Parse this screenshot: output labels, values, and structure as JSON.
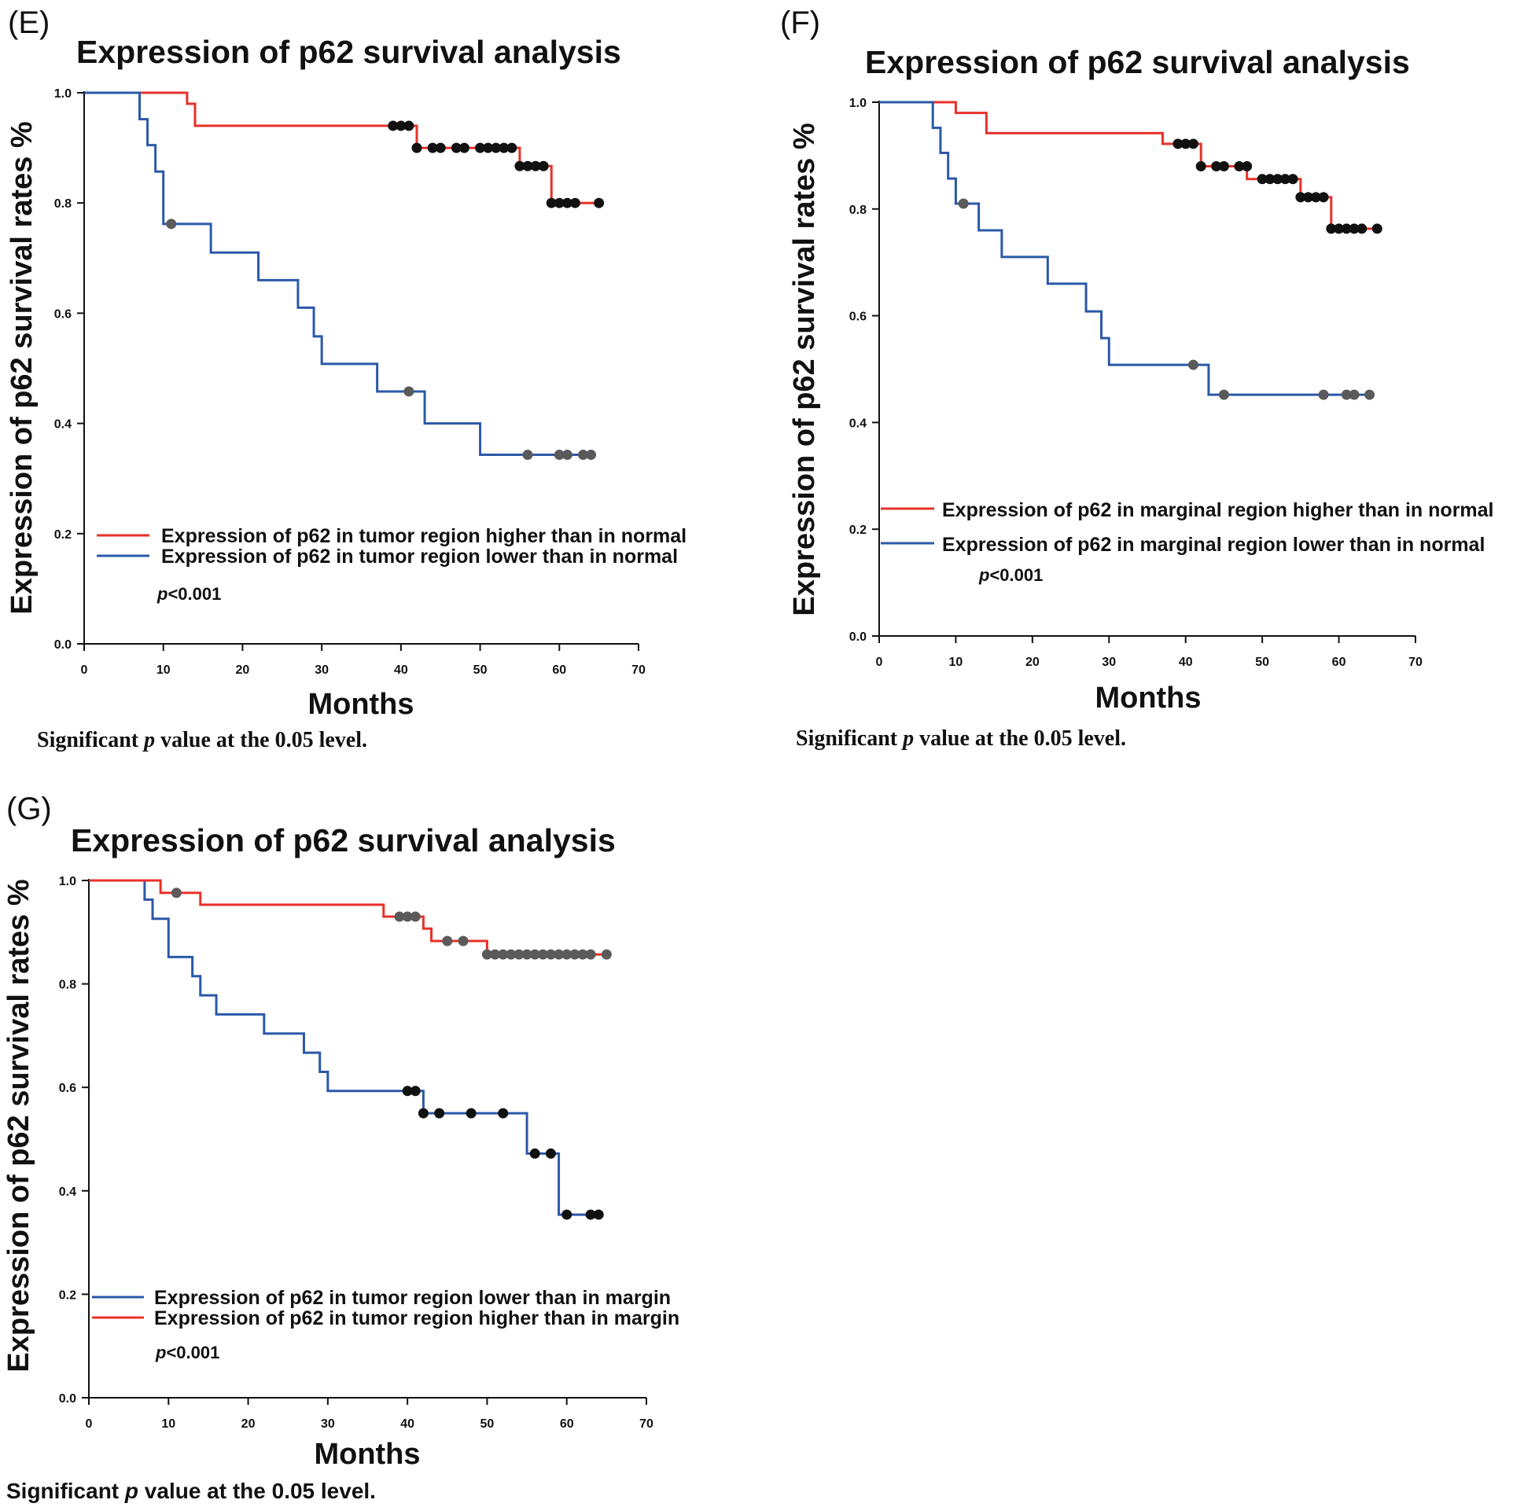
{
  "chart_data": [
    {
      "type": "line",
      "panel_label": "(E)",
      "title": "Expression of p62 survival analysis",
      "xlabel": "Months",
      "ylabel": "Expression of p62 survival rates %",
      "xlim": [
        0,
        70
      ],
      "ylim": [
        0,
        1
      ],
      "xticks": [
        "0",
        "10",
        "20",
        "30",
        "40",
        "50",
        "60",
        "70"
      ],
      "yticks": [
        "0.0",
        "0.2",
        "0.4",
        "0.6",
        "0.8",
        "1.0"
      ],
      "legend_placement": "lower-left",
      "p_prefix": "p",
      "p_value": "<0.001",
      "note": {
        "prefix": "Significant ",
        "italic": "p",
        "suffix": " value at the 0.05 level."
      },
      "series": [
        {
          "name": "Expression of p62 in tumor region higher than in normal",
          "color": "#e8312a",
          "censor_color": "#111111",
          "x": [
            0,
            13,
            14,
            42,
            55,
            59,
            65
          ],
          "y": [
            1.0,
            0.98,
            0.94,
            0.9,
            0.867,
            0.8,
            0.8
          ],
          "censored": [
            [
              39,
              0.94
            ],
            [
              40,
              0.94
            ],
            [
              41,
              0.94
            ],
            [
              42,
              0.9
            ],
            [
              44,
              0.9
            ],
            [
              45,
              0.9
            ],
            [
              47,
              0.9
            ],
            [
              48,
              0.9
            ],
            [
              50,
              0.9
            ],
            [
              51,
              0.9
            ],
            [
              52,
              0.9
            ],
            [
              53,
              0.9
            ],
            [
              54,
              0.9
            ],
            [
              55,
              0.867
            ],
            [
              56,
              0.867
            ],
            [
              57,
              0.867
            ],
            [
              58,
              0.867
            ],
            [
              59,
              0.8
            ],
            [
              60,
              0.8
            ],
            [
              61,
              0.8
            ],
            [
              62,
              0.8
            ],
            [
              65,
              0.8
            ]
          ]
        },
        {
          "name": "Expression of p62 in tumor region lower than in normal",
          "color": "#2b59a8",
          "censor_color": "#5a5a5a",
          "x": [
            0,
            7,
            8,
            9,
            10,
            16,
            22,
            27,
            29,
            30,
            37,
            43,
            50,
            64
          ],
          "y": [
            1.0,
            0.952,
            0.905,
            0.857,
            0.762,
            0.71,
            0.66,
            0.61,
            0.558,
            0.508,
            0.458,
            0.4,
            0.343,
            0.343
          ],
          "censored": [
            [
              11,
              0.762
            ],
            [
              41,
              0.458
            ],
            [
              56,
              0.343
            ],
            [
              60,
              0.343
            ],
            [
              61,
              0.343
            ],
            [
              63,
              0.343
            ],
            [
              64,
              0.343
            ]
          ]
        }
      ]
    },
    {
      "type": "line",
      "panel_label": "(F)",
      "title": "Expression of p62 survival analysis",
      "xlabel": "Months",
      "ylabel": "Expression of p62 survival rates %",
      "xlim": [
        0,
        70
      ],
      "ylim": [
        0,
        1
      ],
      "xticks": [
        "0",
        "10",
        "20",
        "30",
        "40",
        "50",
        "60",
        "70"
      ],
      "yticks": [
        "0.0",
        "0.2",
        "0.4",
        "0.6",
        "0.8",
        "1.0"
      ],
      "legend_placement": "lower-left",
      "p_prefix": "p",
      "p_value": "<0.001",
      "note": {
        "prefix": "Significant ",
        "italic": "p",
        "suffix": " value at the 0.05 level."
      },
      "series": [
        {
          "name": "Expression of p62 in marginal region higher than in normal",
          "color": "#e8312a",
          "censor_color": "#111111",
          "x": [
            0,
            10,
            14,
            37,
            42,
            48,
            55,
            59,
            65
          ],
          "y": [
            1.0,
            0.98,
            0.942,
            0.922,
            0.88,
            0.856,
            0.822,
            0.763,
            0.763
          ],
          "censored": [
            [
              39,
              0.922
            ],
            [
              40,
              0.922
            ],
            [
              41,
              0.922
            ],
            [
              42,
              0.88
            ],
            [
              44,
              0.88
            ],
            [
              45,
              0.88
            ],
            [
              47,
              0.88
            ],
            [
              48,
              0.88
            ],
            [
              50,
              0.856
            ],
            [
              51,
              0.856
            ],
            [
              52,
              0.856
            ],
            [
              53,
              0.856
            ],
            [
              54,
              0.856
            ],
            [
              55,
              0.822
            ],
            [
              56,
              0.822
            ],
            [
              57,
              0.822
            ],
            [
              58,
              0.822
            ],
            [
              59,
              0.763
            ],
            [
              60,
              0.763
            ],
            [
              61,
              0.763
            ],
            [
              62,
              0.763
            ],
            [
              63,
              0.763
            ],
            [
              65,
              0.763
            ]
          ]
        },
        {
          "name": "Expression of p62 in marginal region lower than in normal",
          "color": "#2b59a8",
          "censor_color": "#5a5a5a",
          "x": [
            0,
            7,
            8,
            9,
            10,
            13,
            16,
            22,
            27,
            29,
            30,
            43,
            64
          ],
          "y": [
            1.0,
            0.952,
            0.905,
            0.857,
            0.81,
            0.76,
            0.71,
            0.66,
            0.608,
            0.558,
            0.508,
            0.452,
            0.452
          ],
          "censored": [
            [
              11,
              0.81
            ],
            [
              41,
              0.508
            ],
            [
              45,
              0.452
            ],
            [
              58,
              0.452
            ],
            [
              61,
              0.452
            ],
            [
              62,
              0.452
            ],
            [
              64,
              0.452
            ]
          ]
        }
      ]
    },
    {
      "type": "line",
      "panel_label": "(G)",
      "title": "Expression of p62 survival analysis",
      "xlabel": "Months",
      "ylabel": "Expression of p62 survival rates %",
      "xlim": [
        0,
        70
      ],
      "ylim": [
        0,
        1
      ],
      "xticks": [
        "0",
        "10",
        "20",
        "30",
        "40",
        "50",
        "60",
        "70"
      ],
      "yticks": [
        "0.0",
        "0.2",
        "0.4",
        "0.6",
        "0.8",
        "1.0"
      ],
      "legend_placement": "lower-left",
      "p_prefix": "p",
      "p_value": "<0.001",
      "note": {
        "prefix": "Significant ",
        "italic": "p",
        "suffix": " value at the 0.05 level."
      },
      "series": [
        {
          "name": "Expression of p62 in tumor region lower than in margin",
          "color": "#2b59a8",
          "censor_color": "#111111",
          "x": [
            0,
            7,
            8,
            10,
            13,
            14,
            16,
            22,
            27,
            29,
            30,
            42,
            55,
            59,
            64
          ],
          "y": [
            1.0,
            0.963,
            0.926,
            0.852,
            0.815,
            0.778,
            0.741,
            0.704,
            0.667,
            0.63,
            0.593,
            0.55,
            0.472,
            0.354,
            0.354
          ],
          "censored": [
            [
              40,
              0.593
            ],
            [
              41,
              0.593
            ],
            [
              42,
              0.55
            ],
            [
              44,
              0.55
            ],
            [
              48,
              0.55
            ],
            [
              52,
              0.55
            ],
            [
              56,
              0.472
            ],
            [
              58,
              0.472
            ],
            [
              60,
              0.354
            ],
            [
              63,
              0.354
            ],
            [
              64,
              0.354
            ]
          ]
        },
        {
          "name": "Expression of p62 in tumor region higher than in margin",
          "color": "#e8312a",
          "censor_color": "#5a5a5a",
          "x": [
            0,
            9,
            14,
            37,
            42,
            43,
            50,
            65
          ],
          "y": [
            1.0,
            0.976,
            0.953,
            0.93,
            0.907,
            0.883,
            0.857,
            0.857
          ],
          "censored": [
            [
              11,
              0.976
            ],
            [
              39,
              0.93
            ],
            [
              40,
              0.93
            ],
            [
              41,
              0.93
            ],
            [
              45,
              0.883
            ],
            [
              47,
              0.883
            ],
            [
              50,
              0.857
            ],
            [
              51,
              0.857
            ],
            [
              52,
              0.857
            ],
            [
              53,
              0.857
            ],
            [
              54,
              0.857
            ],
            [
              55,
              0.857
            ],
            [
              56,
              0.857
            ],
            [
              57,
              0.857
            ],
            [
              58,
              0.857
            ],
            [
              59,
              0.857
            ],
            [
              60,
              0.857
            ],
            [
              61,
              0.857
            ],
            [
              62,
              0.857
            ],
            [
              63,
              0.857
            ],
            [
              65,
              0.857
            ]
          ]
        }
      ]
    }
  ]
}
